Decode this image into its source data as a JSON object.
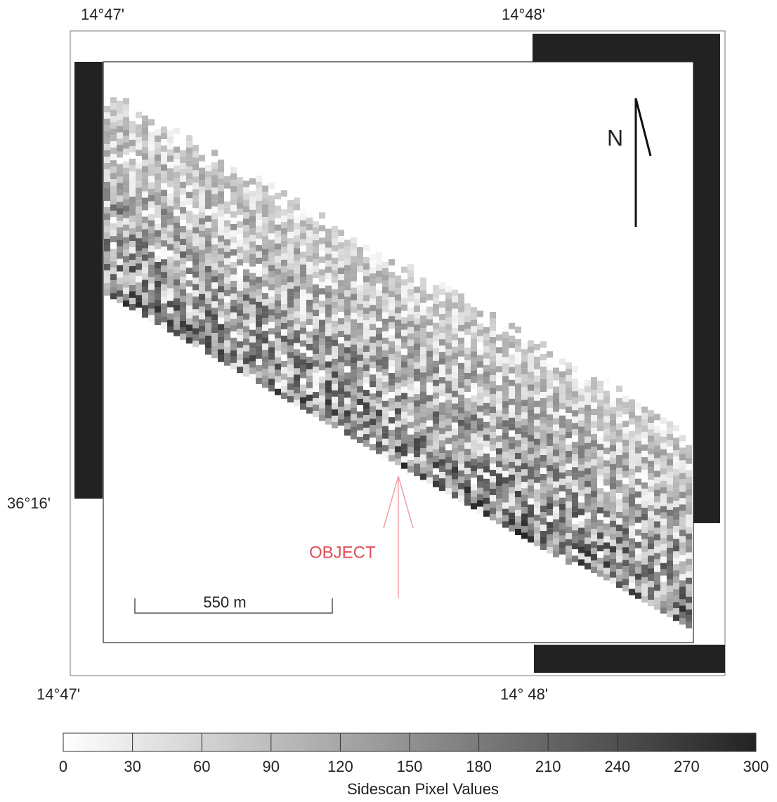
{
  "map": {
    "top_labels": [
      "14°47'",
      "14°48'"
    ],
    "bottom_labels": [
      "14°47'",
      "14° 48'"
    ],
    "left_label": "36°16'",
    "north": "N",
    "annotation": "OBJECT",
    "scale_bar": "550 m"
  },
  "colorbar": {
    "title": "Sidescan Pixel Values",
    "lim": [
      0,
      300
    ],
    "ticks": [
      0,
      30,
      60,
      90,
      120,
      150,
      180,
      210,
      240,
      270,
      300
    ]
  }
}
